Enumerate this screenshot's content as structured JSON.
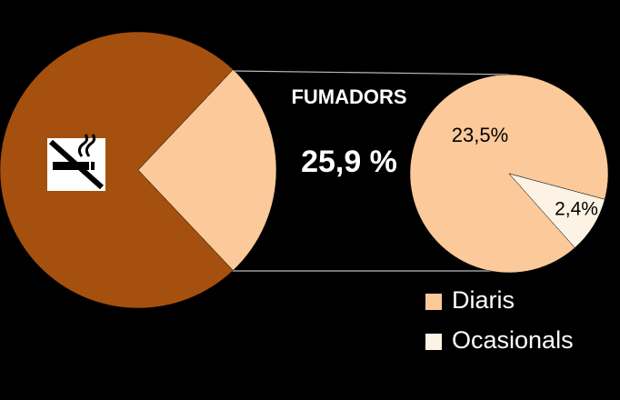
{
  "chart_data": [
    {
      "type": "pie",
      "categories": [
        null,
        "FUMADORS"
      ],
      "values": [
        74.1,
        25.9
      ],
      "value_labels": [
        null,
        "25,9 %"
      ],
      "colors": [
        "#a5500f",
        "#fbc99a"
      ]
    },
    {
      "type": "pie",
      "categories": [
        "Diaris",
        "Ocasionals"
      ],
      "values": [
        23.5,
        2.4
      ],
      "value_labels": [
        "23,5%",
        "2,4%"
      ],
      "colors": [
        "#fbc99a",
        "#fdf3e4"
      ],
      "legend": "bottom-right"
    }
  ]
}
